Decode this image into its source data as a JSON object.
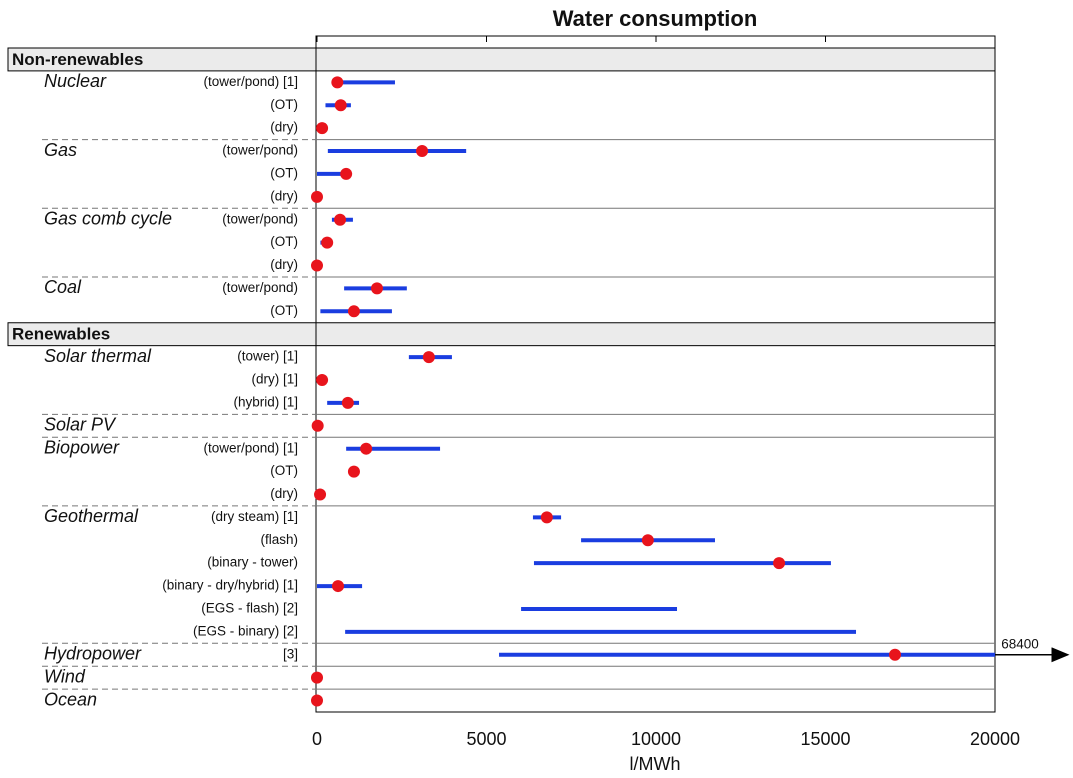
{
  "chart_data": {
    "type": "range",
    "title": "Water consumption",
    "xlabel": "l/MWh",
    "xlim": [
      0,
      20000
    ],
    "xticks": [
      0,
      5000,
      10000,
      15000,
      20000
    ],
    "range_color": "#1a3de0",
    "point_color": "#e8141c",
    "groups": [
      {
        "name": "Non-renewables",
        "items": [
          {
            "name": "Nuclear",
            "rows": [
              {
                "label": "(tower/pond) [1]",
                "min": 500,
                "max": 2300,
                "value": 600
              },
              {
                "label": "(OT)",
                "min": 250,
                "max": 1000,
                "value": 700
              },
              {
                "label": "(dry)",
                "min": null,
                "max": null,
                "value": 150
              }
            ]
          },
          {
            "name": "Gas",
            "rows": [
              {
                "label": "(tower/pond)",
                "min": 320,
                "max": 4400,
                "value": 3100
              },
              {
                "label": "(OT)",
                "min": 0,
                "max": 1000,
                "value": 860
              },
              {
                "label": "(dry)",
                "min": null,
                "max": null,
                "value": 0
              }
            ]
          },
          {
            "name": "Gas comb cycle",
            "rows": [
              {
                "label": "(tower/pond)",
                "min": 440,
                "max": 1060,
                "value": 680
              },
              {
                "label": "(OT)",
                "min": 100,
                "max": 400,
                "value": 300
              },
              {
                "label": "(dry)",
                "min": null,
                "max": null,
                "value": 0
              }
            ]
          },
          {
            "name": "Coal",
            "rows": [
              {
                "label": "(tower/pond)",
                "min": 800,
                "max": 2650,
                "value": 1770
              },
              {
                "label": "(OT)",
                "min": 100,
                "max": 2210,
                "value": 1090
              }
            ]
          }
        ]
      },
      {
        "name": "Renewables",
        "items": [
          {
            "name": "Solar thermal",
            "rows": [
              {
                "label": "(tower) [1]",
                "min": 2710,
                "max": 3980,
                "value": 3300
              },
              {
                "label": "(dry) [1]",
                "min": null,
                "max": null,
                "value": 150
              },
              {
                "label": "(hybrid) [1]",
                "min": 300,
                "max": 1240,
                "value": 910
              }
            ]
          },
          {
            "name": "Solar PV",
            "rows": [
              {
                "min": null,
                "max": null,
                "value": 20
              }
            ]
          },
          {
            "name": "Biopower",
            "rows": [
              {
                "label": "(tower/pond) [1]",
                "min": 860,
                "max": 3630,
                "value": 1450
              },
              {
                "label": "(OT)",
                "min": null,
                "max": null,
                "value": 1090
              },
              {
                "label": "(dry)",
                "min": null,
                "max": null,
                "value": 90
              }
            ]
          },
          {
            "name": "Geothermal",
            "rows": [
              {
                "label": "(dry steam) [1]",
                "min": 6370,
                "max": 7200,
                "value": 6780
              },
              {
                "label": "(flash)",
                "min": 7790,
                "max": 11740,
                "value": 9760
              },
              {
                "label": "(binary - tower)",
                "min": 6400,
                "max": 15160,
                "value": 13630
              },
              {
                "label": "(binary - dry/hybrid) [1]",
                "min": 0,
                "max": 1330,
                "value": 620
              },
              {
                "label": "(EGS - flash) [2]",
                "min": 6020,
                "max": 10620,
                "value": null
              },
              {
                "label": "(EGS - binary) [2]",
                "min": 830,
                "max": 15900,
                "value": null
              }
            ]
          },
          {
            "name": "Hydropower",
            "rows": [
              {
                "label": "[3]",
                "min": 5370,
                "max": 68400,
                "value": 17050
              }
            ]
          },
          {
            "name": "Wind",
            "rows": [
              {
                "min": null,
                "max": null,
                "value": 0
              }
            ]
          },
          {
            "name": "Ocean",
            "rows": [
              {
                "min": null,
                "max": null,
                "value": 0
              }
            ]
          }
        ]
      }
    ]
  }
}
